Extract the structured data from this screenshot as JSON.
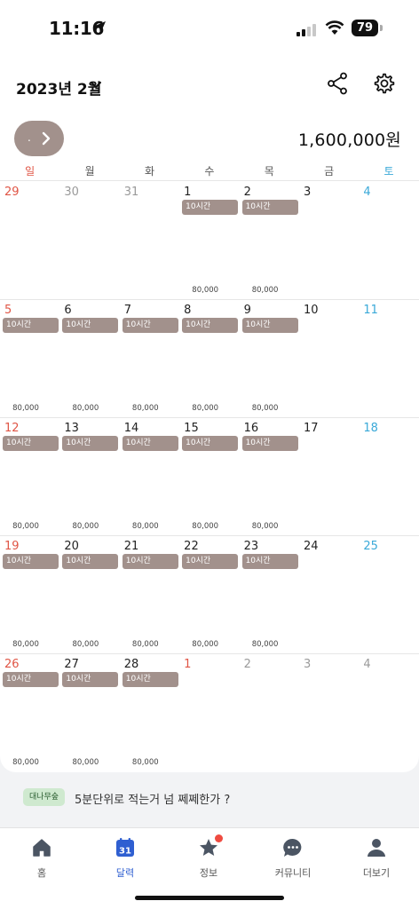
{
  "status_bar": {
    "time": "11:16",
    "battery": "79"
  },
  "header": {
    "month_title": "2023년 2월",
    "total_amount": "1,600,000원",
    "nav_button_label": "."
  },
  "weekdays": [
    "일",
    "월",
    "화",
    "수",
    "목",
    "금",
    "토"
  ],
  "calendar": {
    "weeks": [
      [
        {
          "day": "29",
          "muted": true
        },
        {
          "day": "30",
          "muted": true
        },
        {
          "day": "31",
          "muted": true
        },
        {
          "day": "1",
          "shift": "10시간",
          "pay": "80,000"
        },
        {
          "day": "2",
          "shift": "10시간",
          "pay": "80,000"
        },
        {
          "day": "3"
        },
        {
          "day": "4"
        }
      ],
      [
        {
          "day": "5",
          "shift": "10시간",
          "pay": "80,000"
        },
        {
          "day": "6",
          "shift": "10시간",
          "pay": "80,000"
        },
        {
          "day": "7",
          "shift": "10시간",
          "pay": "80,000"
        },
        {
          "day": "8",
          "shift": "10시간",
          "pay": "80,000"
        },
        {
          "day": "9",
          "shift": "10시간",
          "pay": "80,000"
        },
        {
          "day": "10"
        },
        {
          "day": "11"
        }
      ],
      [
        {
          "day": "12",
          "shift": "10시간",
          "pay": "80,000"
        },
        {
          "day": "13",
          "shift": "10시간",
          "pay": "80,000"
        },
        {
          "day": "14",
          "shift": "10시간",
          "pay": "80,000"
        },
        {
          "day": "15",
          "shift": "10시간",
          "pay": "80,000"
        },
        {
          "day": "16",
          "shift": "10시간",
          "pay": "80,000"
        },
        {
          "day": "17"
        },
        {
          "day": "18"
        }
      ],
      [
        {
          "day": "19",
          "shift": "10시간",
          "pay": "80,000"
        },
        {
          "day": "20",
          "shift": "10시간",
          "pay": "80,000"
        },
        {
          "day": "21",
          "shift": "10시간",
          "pay": "80,000"
        },
        {
          "day": "22",
          "shift": "10시간",
          "pay": "80,000"
        },
        {
          "day": "23",
          "shift": "10시간",
          "pay": "80,000"
        },
        {
          "day": "24"
        },
        {
          "day": "25"
        }
      ],
      [
        {
          "day": "26",
          "shift": "10시간",
          "pay": "80,000"
        },
        {
          "day": "27",
          "shift": "10시간",
          "pay": "80,000"
        },
        {
          "day": "28",
          "shift": "10시간",
          "pay": "80,000"
        },
        {
          "day": "1",
          "muted": true
        },
        {
          "day": "2",
          "muted": true
        },
        {
          "day": "3",
          "muted": true
        },
        {
          "day": "4",
          "muted": true
        }
      ]
    ]
  },
  "notice": {
    "badge": "대나무숲",
    "text": "5분단위로 적는거 넘 쩨쩨한가 ?"
  },
  "tabs": [
    {
      "label": "홈",
      "icon": "home-icon"
    },
    {
      "label": "달력",
      "icon": "calendar-icon",
      "active": true,
      "icon_text": "31"
    },
    {
      "label": "정보",
      "icon": "star-icon",
      "notification": true
    },
    {
      "label": "커뮤니티",
      "icon": "chat-bubble-icon"
    },
    {
      "label": "더보기",
      "icon": "person-icon"
    }
  ],
  "colors": {
    "shift_tag": "#a2918c",
    "sunday": "#e05545",
    "saturday": "#3aa9d8",
    "active_tab": "#2f5fd1",
    "notice_badge_bg": "#cfe9cf"
  }
}
